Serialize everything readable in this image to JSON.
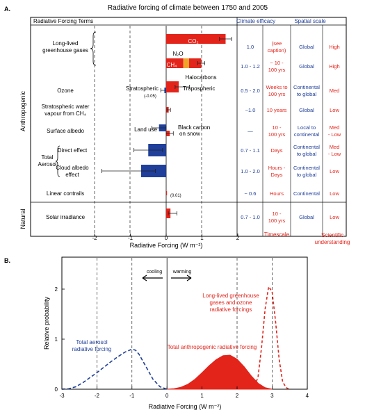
{
  "panel_a": {
    "letter": "A.",
    "title": "Radiative forcing of climate between 1750 and 2005",
    "col_terms": "Radiative Forcing Terms",
    "col_efficacy": "Climate efficacy",
    "col_spatial": "Spatial scale",
    "group_anthropogenic": "Anthropogenic",
    "group_natural": "Natural",
    "aerosol_group_label": [
      "Total",
      "Aerosol"
    ],
    "rows": [
      {
        "label": [
          "Long-lived",
          "greenhouse gases"
        ],
        "efficacy": "1.0",
        "timescale": [
          "(see",
          "caption)"
        ],
        "spatial": [
          "Global"
        ],
        "understanding": [
          "High"
        ]
      },
      {
        "label": [
          ""
        ],
        "efficacy": "1.0 - 1.2",
        "timescale": [
          "~ 10 -",
          "100 yrs"
        ],
        "spatial": [
          "Global"
        ],
        "understanding": [
          "High"
        ]
      },
      {
        "label": [
          "Ozone"
        ],
        "efficacy": "0.5 - 2.0",
        "timescale": [
          "Weeks to",
          "100 yrs"
        ],
        "spatial": [
          "Continental",
          "to global"
        ],
        "understanding": [
          "Med"
        ]
      },
      {
        "label": [
          "Stratospheric water",
          "vapour from CH₄"
        ],
        "efficacy": "~1.0",
        "timescale": [
          "10 years"
        ],
        "spatial": [
          "Global"
        ],
        "understanding": [
          "Low"
        ]
      },
      {
        "label": [
          "Surface albedo"
        ],
        "efficacy": "—",
        "timescale": [
          "10 -",
          "100 yrs"
        ],
        "spatial": [
          "Local to",
          "continental"
        ],
        "understanding": [
          "Med",
          "- Low"
        ]
      },
      {
        "label": [
          "Direct effect"
        ],
        "efficacy": "0.7 - 1.1",
        "timescale": [
          "Days"
        ],
        "spatial": [
          "Continental",
          "to global"
        ],
        "understanding": [
          "Med",
          "- Low"
        ]
      },
      {
        "label": [
          "Cloud albedo",
          "effect"
        ],
        "efficacy": "1.0 - 2.0",
        "timescale": [
          "Hours -",
          "Days"
        ],
        "spatial": [
          "Continental",
          "to global"
        ],
        "understanding": [
          "Low"
        ]
      },
      {
        "label": [
          "Linear contrails"
        ],
        "efficacy": "~ 0.6",
        "timescale": [
          "Hours"
        ],
        "spatial": [
          "Continental"
        ],
        "understanding": [
          "Low"
        ]
      },
      {
        "label": [
          "Solar irradiance"
        ],
        "efficacy": "0.7 - 1.0",
        "timescale": [
          "10 -",
          "100 yrs"
        ],
        "spatial": [
          "Global"
        ],
        "understanding": [
          "Low"
        ]
      }
    ],
    "col_timescale": "Timescale",
    "col_understanding": [
      "Scientific",
      "understanding"
    ],
    "inline_labels": {
      "co2": "CO₂",
      "ch4": "CH₄",
      "n2o": "N₂O",
      "halocarbons": "Halocarbons",
      "stratospheric": "Stratospheric",
      "tropospheric": "Tropospheric",
      "strat_value": "(-0.05)",
      "land_use": "Land use",
      "black_carbon": [
        "Black carbon",
        "on snow"
      ],
      "contrail_value": "(0.01)"
    },
    "xaxis_ticks": [
      "-2",
      "-1",
      "0",
      "1",
      "2"
    ],
    "xlabel": "Radiative Forcing  (W m⁻²)"
  },
  "panel_b": {
    "letter": "B.",
    "ylabel": "Relative probability",
    "yticks": [
      "0",
      "1",
      "2"
    ],
    "xticks": [
      "-3",
      "-2",
      "-1",
      "0",
      "1",
      "2",
      "3",
      "4"
    ],
    "xlabel": "Radiative Forcing  (W m⁻²)",
    "cooling": "cooling",
    "warming": "warming",
    "aerosol_label": [
      "Total aerosol",
      "radiative forcing"
    ],
    "ghg_label": [
      "Long-lived greenhouse",
      "gases and ozone",
      "radiative forcings"
    ],
    "total_label": "Total anthropogenic radiative forcing"
  },
  "colors": {
    "red": "#e3241b",
    "blue": "#1f3f9a",
    "orange": "#f0a52a"
  },
  "chart_data": [
    {
      "type": "bar",
      "orientation": "horizontal",
      "title": "Radiative forcing of climate between 1750 and 2005",
      "xlabel": "Radiative Forcing  (W m⁻²)",
      "xlim": [
        -2,
        2
      ],
      "categories": [
        "CO₂",
        "CH₄",
        "N₂O",
        "Halocarbons",
        "Stratospheric ozone",
        "Tropospheric ozone",
        "Stratospheric water vapour from CH₄",
        "Land use",
        "Black carbon on snow",
        "Direct effect",
        "Cloud albedo effect",
        "Linear contrails",
        "Solar irradiance"
      ],
      "values": [
        1.66,
        0.48,
        0.16,
        0.34,
        -0.05,
        0.35,
        0.07,
        -0.2,
        0.1,
        -0.5,
        -0.7,
        0.01,
        0.12
      ],
      "error_low": [
        1.49,
        null,
        null,
        null,
        -0.15,
        0.25,
        0.02,
        -0.4,
        0.0,
        -0.9,
        -1.8,
        null,
        0.06
      ],
      "error_high": [
        1.83,
        null,
        null,
        0.96,
        0.05,
        0.65,
        0.12,
        0.0,
        0.2,
        -0.1,
        -0.3,
        null,
        0.3
      ],
      "combined_total": [
        {
          "name": "CH₄ + N₂O + Halocarbons",
          "value": 0.98,
          "low": 0.88,
          "high": 1.08
        }
      ]
    },
    {
      "type": "line",
      "xlabel": "Radiative Forcing  (W m⁻²)",
      "ylabel": "Relative probability",
      "xlim": [
        -3,
        4
      ],
      "ylim": [
        0,
        2.3
      ],
      "series": [
        {
          "name": "Total aerosol radiative forcing",
          "style": "dashed",
          "x": [
            -3,
            -2.8,
            -2.6,
            -2.4,
            -2.2,
            -2.0,
            -1.8,
            -1.6,
            -1.4,
            -1.2,
            -1.0,
            -0.9,
            -0.8,
            -0.6,
            -0.4,
            -0.2,
            0.0
          ],
          "y": [
            0,
            0.01,
            0.05,
            0.13,
            0.23,
            0.33,
            0.44,
            0.55,
            0.65,
            0.74,
            0.8,
            0.78,
            0.7,
            0.45,
            0.2,
            0.05,
            0
          ]
        },
        {
          "name": "Long-lived greenhouse gases and ozone radiative forcings",
          "style": "dashed",
          "x": [
            2.4,
            2.5,
            2.6,
            2.7,
            2.8,
            2.9,
            3.0,
            3.1,
            3.2,
            3.3,
            3.4,
            3.5
          ],
          "y": [
            0,
            0.05,
            0.25,
            0.85,
            1.6,
            2.05,
            1.95,
            1.35,
            0.6,
            0.15,
            0.03,
            0
          ]
        },
        {
          "name": "Total anthropogenic radiative forcing",
          "style": "filled",
          "x": [
            0.0,
            0.2,
            0.4,
            0.6,
            0.8,
            1.0,
            1.2,
            1.4,
            1.6,
            1.8,
            2.0,
            2.2,
            2.4,
            2.6,
            2.8,
            3.0
          ],
          "y": [
            0,
            0.01,
            0.04,
            0.1,
            0.2,
            0.33,
            0.47,
            0.59,
            0.67,
            0.68,
            0.6,
            0.45,
            0.27,
            0.12,
            0.03,
            0
          ]
        }
      ]
    }
  ]
}
